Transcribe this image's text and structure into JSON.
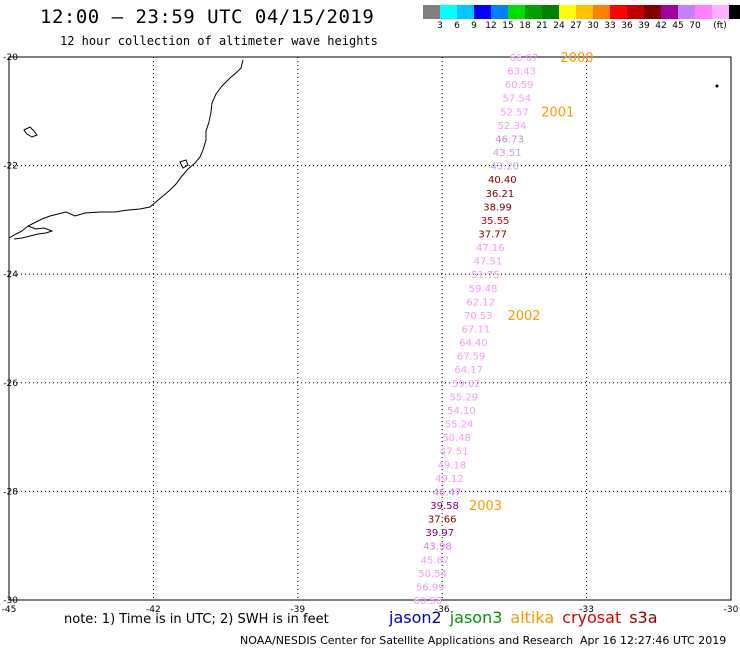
{
  "title": "12:00 – 23:59 UTC 04/15/2019",
  "subtitle": "12 hour collection of altimeter wave heights",
  "legend": {
    "colors": [
      "#808080",
      "#00ffff",
      "#00c8ff",
      "#0000ff",
      "#0080ff",
      "#00e000",
      "#00a000",
      "#008000",
      "#ffff00",
      "#ffc000",
      "#ff8000",
      "#ff0000",
      "#c00000",
      "#800000",
      "#a000a0",
      "#c080ff",
      "#ff80ff",
      "#ffb0ff",
      "#000000"
    ],
    "labels": [
      "3",
      "6",
      "9",
      "12",
      "15",
      "18",
      "21",
      "24",
      "27",
      "30",
      "33",
      "36",
      "39",
      "42",
      "45",
      "70",
      "(ft)"
    ]
  },
  "axes": {
    "lon_labels": [
      "-45",
      "-42",
      "-39",
      "-36",
      "-33",
      "-30"
    ],
    "lat_labels": [
      "-20",
      "-22",
      "-24",
      "-26",
      "-28",
      "-30"
    ]
  },
  "track": [
    {
      "lat": -20.0,
      "lon": -34.3,
      "value": "66.07",
      "color": "#f0a0f0"
    },
    {
      "lat": -20.25,
      "lon": -34.35,
      "value": "63.43",
      "color": "#f0a0f0"
    },
    {
      "lat": -20.5,
      "lon": -34.4,
      "value": "60.59",
      "color": "#f0a0f0"
    },
    {
      "lat": -20.75,
      "lon": -34.45,
      "value": "57.54",
      "color": "#f0a0f0"
    },
    {
      "lat": -21.0,
      "lon": -34.5,
      "value": "52.57",
      "color": "#f0a0f0"
    },
    {
      "lat": -21.25,
      "lon": -34.55,
      "value": "52.34",
      "color": "#f0a0f0"
    },
    {
      "lat": -21.5,
      "lon": -34.6,
      "value": "46.73",
      "color": "#d080e0"
    },
    {
      "lat": -21.75,
      "lon": -34.65,
      "value": "43.51",
      "color": "#c8a0f0"
    },
    {
      "lat": -22.0,
      "lon": -34.7,
      "value": "43.20",
      "color": "#c8a0f0"
    },
    {
      "lat": -22.25,
      "lon": -34.75,
      "value": "40.40",
      "color": "#800000"
    },
    {
      "lat": -22.5,
      "lon": -34.8,
      "value": "36.21",
      "color": "#800000"
    },
    {
      "lat": -22.75,
      "lon": -34.85,
      "value": "38.99",
      "color": "#800000"
    },
    {
      "lat": -23.0,
      "lon": -34.9,
      "value": "35.55",
      "color": "#c00000"
    },
    {
      "lat": -23.25,
      "lon": -34.95,
      "value": "37.77",
      "color": "#800000"
    },
    {
      "lat": -23.5,
      "lon": -35.0,
      "value": "47.16",
      "color": "#f0a0f0"
    },
    {
      "lat": -23.75,
      "lon": -35.05,
      "value": "47.51",
      "color": "#f0a0f0"
    },
    {
      "lat": -24.0,
      "lon": -35.1,
      "value": "51.75",
      "color": "#f0a0f0"
    },
    {
      "lat": -24.25,
      "lon": -35.15,
      "value": "59.48",
      "color": "#f0a0f0"
    },
    {
      "lat": -24.5,
      "lon": -35.2,
      "value": "62.12",
      "color": "#f0a0f0"
    },
    {
      "lat": -24.75,
      "lon": -35.25,
      "value": "70.53",
      "color": "#f0a0f0"
    },
    {
      "lat": -25.0,
      "lon": -35.3,
      "value": "67.11",
      "color": "#f0a0f0"
    },
    {
      "lat": -25.25,
      "lon": -35.35,
      "value": "64.40",
      "color": "#f0a0f0"
    },
    {
      "lat": -25.5,
      "lon": -35.4,
      "value": "67.59",
      "color": "#f0a0f0"
    },
    {
      "lat": -25.75,
      "lon": -35.45,
      "value": "64.17",
      "color": "#f0a0f0"
    },
    {
      "lat": -26.0,
      "lon": -35.5,
      "value": "59.02",
      "color": "#f0a0f0"
    },
    {
      "lat": -26.25,
      "lon": -35.55,
      "value": "55.29",
      "color": "#f0a0f0"
    },
    {
      "lat": -26.5,
      "lon": -35.6,
      "value": "54.10",
      "color": "#f0a0f0"
    },
    {
      "lat": -26.75,
      "lon": -35.65,
      "value": "55.24",
      "color": "#f0a0f0"
    },
    {
      "lat": -27.0,
      "lon": -35.7,
      "value": "50.48",
      "color": "#f0a0f0"
    },
    {
      "lat": -27.25,
      "lon": -35.75,
      "value": "47.51",
      "color": "#f0a0f0"
    },
    {
      "lat": -27.5,
      "lon": -35.8,
      "value": "49.18",
      "color": "#f0a0f0"
    },
    {
      "lat": -27.75,
      "lon": -35.85,
      "value": "49.12",
      "color": "#f0a0f0"
    },
    {
      "lat": -28.0,
      "lon": -35.9,
      "value": "46.47",
      "color": "#d080e0"
    },
    {
      "lat": -28.25,
      "lon": -35.95,
      "value": "39.58",
      "color": "#800080"
    },
    {
      "lat": -28.5,
      "lon": -36.0,
      "value": "37.66",
      "color": "#800000"
    },
    {
      "lat": -28.75,
      "lon": -36.05,
      "value": "39.97",
      "color": "#800080"
    },
    {
      "lat": -29.0,
      "lon": -36.1,
      "value": "43.98",
      "color": "#d080e0"
    },
    {
      "lat": -29.25,
      "lon": -36.15,
      "value": "45.87",
      "color": "#f0a0f0"
    },
    {
      "lat": -29.5,
      "lon": -36.2,
      "value": "50.54",
      "color": "#f0a0f0"
    },
    {
      "lat": -29.75,
      "lon": -36.25,
      "value": "56.99",
      "color": "#f0a0f0"
    },
    {
      "lat": -30.0,
      "lon": -36.3,
      "value": "60.56",
      "color": "#f0a0f0"
    }
  ],
  "time_labels": [
    {
      "lat": -20.0,
      "lon": -33.2,
      "text": "2000"
    },
    {
      "lat": -21.0,
      "lon": -33.6,
      "text": "2001"
    },
    {
      "lat": -24.75,
      "lon": -34.3,
      "text": "2002"
    },
    {
      "lat": -28.25,
      "lon": -35.1,
      "text": "2003"
    }
  ],
  "time_label_color": "#ff9900",
  "note": "note:  1) Time is in UTC;  2) SWH is in feet",
  "satellites": [
    {
      "name": "jason2",
      "color": "#0000cc"
    },
    {
      "name": "jason3",
      "color": "#009900"
    },
    {
      "name": "altika",
      "color": "#ff9900"
    },
    {
      "name": "cryosat",
      "color": "#dd0000"
    },
    {
      "name": "s3a",
      "color": "#880000"
    }
  ],
  "credit": "NOAA/NESDIS Center for Satellite Applications and Research",
  "timestamp": "Apr 16 12:27:46 UTC 2019"
}
